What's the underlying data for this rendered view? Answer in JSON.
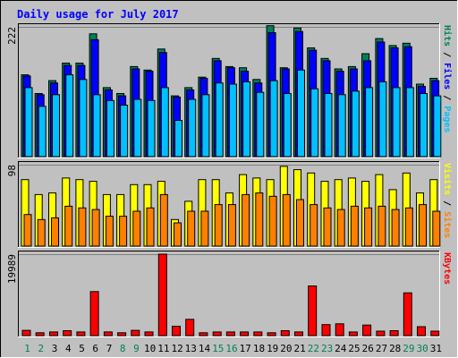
{
  "title": "Daily usage for July 2017",
  "colors": {
    "background": "#c0c0c0",
    "hits": "#00805c",
    "files": "#0000ff",
    "pages": "#00c0ff",
    "visits": "#ffff00",
    "sites": "#ff8000",
    "kbytes": "#ff0000",
    "title_text": "#0000ff",
    "weekend_label": "#00805c",
    "weekday_label": "#000000"
  },
  "chart_data": [
    {
      "type": "bar",
      "panel": "requests",
      "ymax_label": "222",
      "ylim": [
        0,
        222
      ],
      "legend": [
        {
          "label": "Pages",
          "color": "#00c0ff"
        },
        {
          "label": "Files",
          "color": "#0000ff"
        },
        {
          "label": "Hits",
          "color": "#00805c"
        }
      ],
      "categories": [
        "1",
        "2",
        "3",
        "4",
        "5",
        "6",
        "7",
        "8",
        "9",
        "10",
        "11",
        "12",
        "13",
        "14",
        "15",
        "16",
        "17",
        "18",
        "19",
        "20",
        "21",
        "22",
        "23",
        "24",
        "25",
        "26",
        "27",
        "28",
        "29",
        "30",
        "31"
      ],
      "series": [
        {
          "name": "Hits",
          "values": [
            140,
            108,
            130,
            160,
            160,
            210,
            118,
            108,
            154,
            148,
            184,
            104,
            118,
            136,
            168,
            154,
            152,
            132,
            224,
            152,
            220,
            186,
            168,
            150,
            154,
            176,
            202,
            190,
            194,
            124,
            134
          ]
        },
        {
          "name": "Files",
          "values": [
            138,
            106,
            126,
            156,
            156,
            200,
            114,
            104,
            150,
            146,
            178,
            102,
            114,
            134,
            164,
            152,
            146,
            126,
            212,
            150,
            214,
            182,
            164,
            146,
            150,
            164,
            196,
            186,
            188,
            120,
            130
          ]
        },
        {
          "name": "Pages",
          "values": [
            118,
            86,
            106,
            140,
            132,
            106,
            96,
            88,
            98,
            96,
            118,
            62,
            98,
            106,
            126,
            124,
            128,
            110,
            130,
            108,
            148,
            116,
            108,
            106,
            112,
            118,
            128,
            118,
            118,
            108,
            104
          ]
        }
      ]
    },
    {
      "type": "bar",
      "panel": "visits",
      "ymax_label": "98",
      "ylim": [
        0,
        98
      ],
      "legend": [
        {
          "label": "Sites",
          "color": "#ff8000"
        },
        {
          "label": "Visits",
          "color": "#ffff00"
        }
      ],
      "categories": [
        "1",
        "2",
        "3",
        "4",
        "5",
        "6",
        "7",
        "8",
        "9",
        "10",
        "11",
        "12",
        "13",
        "14",
        "15",
        "16",
        "17",
        "18",
        "19",
        "20",
        "21",
        "22",
        "23",
        "24",
        "25",
        "26",
        "27",
        "28",
        "29",
        "30",
        "31"
      ],
      "series": [
        {
          "name": "Visits",
          "values": [
            80,
            62,
            64,
            82,
            80,
            78,
            62,
            62,
            74,
            74,
            78,
            32,
            54,
            80,
            80,
            64,
            86,
            82,
            80,
            96,
            92,
            88,
            78,
            80,
            82,
            78,
            86,
            68,
            88,
            64,
            80
          ]
        },
        {
          "name": "Sites",
          "values": [
            38,
            32,
            34,
            48,
            46,
            44,
            36,
            36,
            42,
            46,
            62,
            28,
            42,
            42,
            50,
            50,
            62,
            64,
            60,
            62,
            56,
            50,
            46,
            44,
            48,
            46,
            48,
            44,
            46,
            50,
            42
          ]
        }
      ]
    },
    {
      "type": "bar",
      "panel": "kbytes",
      "ymax_label": "19989",
      "ylim": [
        0,
        19989
      ],
      "legend": [
        {
          "label": "KBytes",
          "color": "#ff0000"
        }
      ],
      "categories": [
        "1",
        "2",
        "3",
        "4",
        "5",
        "6",
        "7",
        "8",
        "9",
        "10",
        "11",
        "12",
        "13",
        "14",
        "15",
        "16",
        "17",
        "18",
        "19",
        "20",
        "21",
        "22",
        "23",
        "24",
        "25",
        "26",
        "27",
        "28",
        "29",
        "30",
        "31"
      ],
      "series": [
        {
          "name": "KBytes",
          "values": [
            1300,
            700,
            900,
            1200,
            900,
            10800,
            900,
            700,
            1300,
            900,
            19989,
            2300,
            4000,
            700,
            900,
            900,
            900,
            900,
            700,
            1200,
            900,
            12200,
            2700,
            2900,
            900,
            2600,
            1100,
            1200,
            10500,
            2200,
            1100
          ]
        }
      ]
    }
  ],
  "weekends": [
    "1",
    "2",
    "8",
    "9",
    "15",
    "16",
    "22",
    "23",
    "29",
    "30"
  ]
}
